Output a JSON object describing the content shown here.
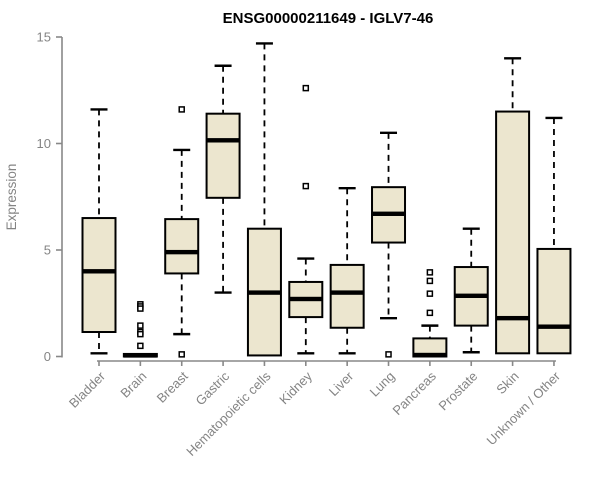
{
  "chart_data": {
    "type": "box",
    "title": "ENSG00000211649 - IGLV7-46",
    "ylabel": "Expression",
    "xlabel": "",
    "ylim": [
      0,
      15
    ],
    "yticks": [
      0,
      5,
      10,
      15
    ],
    "grid": false,
    "legend": "none",
    "x_tick_label_rotation": 45,
    "categories": [
      "Bladder",
      "Brain",
      "Breast",
      "Gastric",
      "Hematopoietic cells",
      "Kidney",
      "Liver",
      "Lung",
      "Pancreas",
      "Prostate",
      "Skin",
      "Unknown / Other"
    ],
    "series": [
      {
        "name": "Bladder",
        "whisker_low": 0.15,
        "q1": 1.15,
        "median": 4.0,
        "q3": 6.5,
        "whisker_high": 11.6,
        "outliers": []
      },
      {
        "name": "Brain",
        "whisker_low": 0.0,
        "q1": 0.0,
        "median": 0.05,
        "q3": 0.12,
        "whisker_high": 0.12,
        "outliers": [
          2.45,
          2.35,
          2.25,
          1.45,
          1.15,
          1.05,
          0.5
        ]
      },
      {
        "name": "Breast",
        "whisker_low": 1.05,
        "q1": 3.9,
        "median": 4.9,
        "q3": 6.45,
        "whisker_high": 9.7,
        "outliers": [
          11.6,
          0.1
        ]
      },
      {
        "name": "Gastric",
        "whisker_low": 3.0,
        "q1": 7.45,
        "median": 10.15,
        "q3": 11.4,
        "whisker_high": 13.65,
        "outliers": []
      },
      {
        "name": "Hematopoietic cells",
        "whisker_low": 0.05,
        "q1": 0.05,
        "median": 3.0,
        "q3": 6.0,
        "whisker_high": 14.7,
        "outliers": []
      },
      {
        "name": "Kidney",
        "whisker_low": 0.15,
        "q1": 1.85,
        "median": 2.7,
        "q3": 3.5,
        "whisker_high": 4.6,
        "outliers": [
          12.6,
          8.0
        ]
      },
      {
        "name": "Liver",
        "whisker_low": 0.15,
        "q1": 1.35,
        "median": 3.0,
        "q3": 4.3,
        "whisker_high": 7.9,
        "outliers": []
      },
      {
        "name": "Lung",
        "whisker_low": 1.8,
        "q1": 5.35,
        "median": 6.7,
        "q3": 7.95,
        "whisker_high": 10.5,
        "outliers": [
          0.1
        ]
      },
      {
        "name": "Pancreas",
        "whisker_low": 0.0,
        "q1": 0.0,
        "median": 0.07,
        "q3": 0.85,
        "whisker_high": 1.45,
        "outliers": [
          3.95,
          3.55,
          2.95,
          2.05
        ]
      },
      {
        "name": "Prostate",
        "whisker_low": 0.2,
        "q1": 1.45,
        "median": 2.85,
        "q3": 4.2,
        "whisker_high": 6.0,
        "outliers": []
      },
      {
        "name": "Skin",
        "whisker_low": 0.15,
        "q1": 0.15,
        "median": 1.8,
        "q3": 11.5,
        "whisker_high": 14.0,
        "outliers": []
      },
      {
        "name": "Unknown / Other",
        "whisker_low": 0.15,
        "q1": 0.15,
        "median": 1.4,
        "q3": 5.05,
        "whisker_high": 11.2,
        "outliers": []
      }
    ],
    "colors": {
      "box_fill": "#ECE6CF",
      "box_stroke": "#000000",
      "median": "#000000",
      "whisker": "#000000",
      "outlier_stroke": "#000000",
      "outlier_fill": "#FFFFFF",
      "axis": "#888888",
      "tick_label": "#848484",
      "title": "#000000",
      "background": "#FFFFFF"
    }
  }
}
